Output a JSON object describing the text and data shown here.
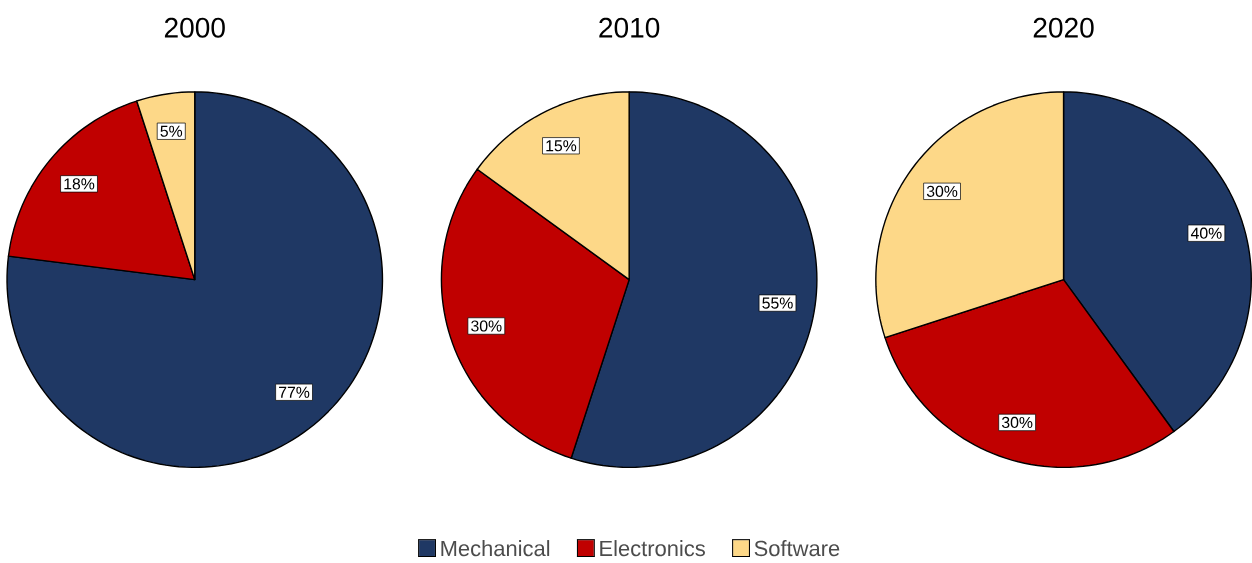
{
  "chart_data": [
    {
      "type": "pie",
      "title": "2000",
      "categories": [
        null,
        null,
        null
      ],
      "values": [
        77,
        18,
        5
      ],
      "colors": [
        "#1f3864",
        "#c00000",
        "#fdd888"
      ],
      "value_labels": [
        "77%",
        "18%",
        "5%"
      ]
    },
    {
      "type": "pie",
      "title": "2010",
      "categories": [
        "Mechanical",
        "Electronics",
        "Software"
      ],
      "values": [
        55,
        30,
        15
      ],
      "colors": [
        "#1f3864",
        "#c00000",
        "#fdd888"
      ],
      "value_labels": [
        "55%",
        "30%",
        "15%"
      ],
      "legend": "bottom"
    },
    {
      "type": "pie",
      "title": "2020",
      "categories": [
        null,
        null,
        null
      ],
      "values": [
        40,
        30,
        30
      ],
      "colors": [
        "#1f3864",
        "#c00000",
        "#fdd888"
      ],
      "value_labels": [
        "40%",
        "30%",
        "30%"
      ]
    }
  ]
}
